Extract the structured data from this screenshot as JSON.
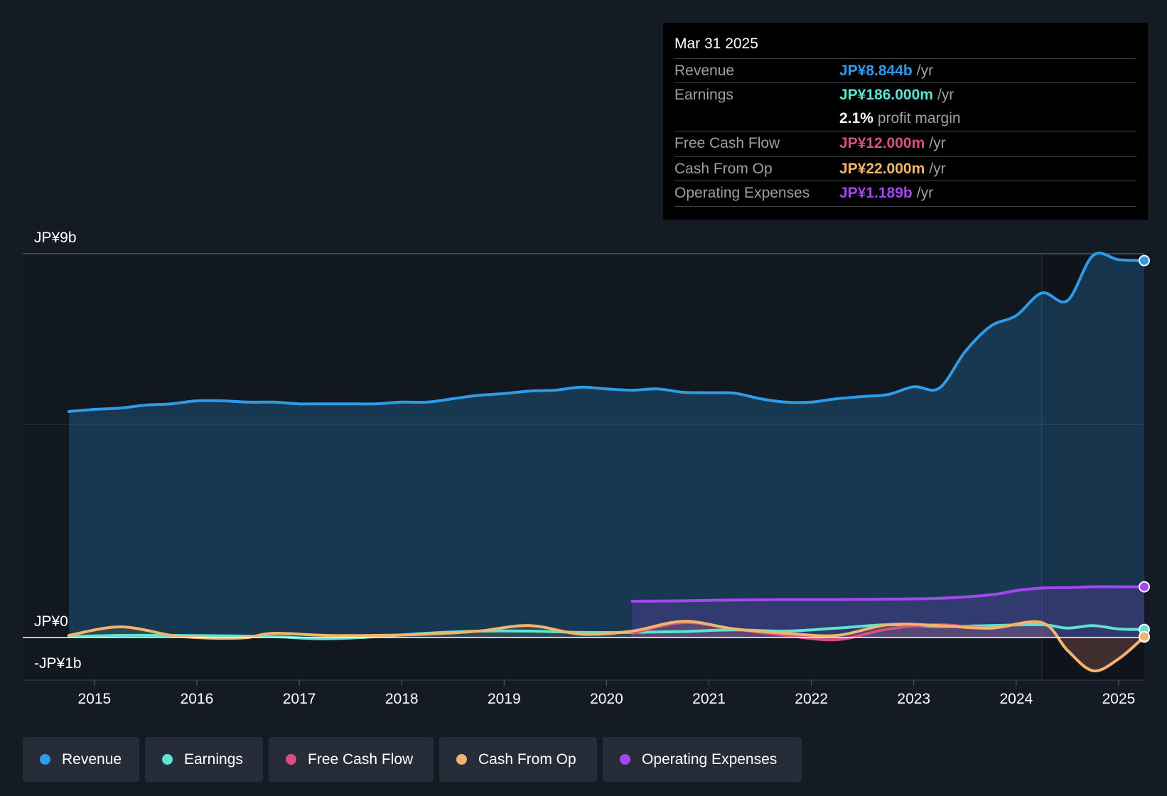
{
  "tooltip": {
    "date": "Mar 31 2025",
    "rows": [
      {
        "label": "Revenue",
        "value": "JP¥8.844b",
        "unit": "/yr",
        "color": "#2d9be8"
      },
      {
        "label": "Earnings",
        "value": "JP¥186.000m",
        "unit": "/yr",
        "color": "#5de3d0"
      },
      {
        "label": "",
        "value": "2.1%",
        "unit": "profit margin",
        "color": "#ffffff"
      },
      {
        "label": "Free Cash Flow",
        "value": "JP¥12.000m",
        "unit": "/yr",
        "color": "#d64f86"
      },
      {
        "label": "Cash From Op",
        "value": "JP¥22.000m",
        "unit": "/yr",
        "color": "#f0b46a"
      },
      {
        "label": "Operating Expenses",
        "value": "JP¥1.189b",
        "unit": "/yr",
        "color": "#a347f0"
      }
    ]
  },
  "legend": [
    {
      "label": "Revenue",
      "color": "#2d9be8"
    },
    {
      "label": "Earnings",
      "color": "#5de3d0"
    },
    {
      "label": "Free Cash Flow",
      "color": "#d64f86"
    },
    {
      "label": "Cash From Op",
      "color": "#f0b46a"
    },
    {
      "label": "Operating Expenses",
      "color": "#a347f0"
    }
  ],
  "chart_data": {
    "type": "area",
    "unit": "JP¥ billions",
    "y_tick_labels": [
      {
        "value": 9,
        "label": "JP¥9b"
      },
      {
        "value": 0,
        "label": "JP¥0"
      },
      {
        "value": -1,
        "label": "-JP¥1b"
      }
    ],
    "ylim": [
      -1,
      9
    ],
    "xlim": [
      2014.3,
      2025.25
    ],
    "x_ticks": [
      2015,
      2016,
      2017,
      2018,
      2019,
      2020,
      2021,
      2022,
      2023,
      2024,
      2025
    ],
    "highlight_start": 2024.25,
    "series": [
      {
        "name": "Revenue",
        "color": "#2d9be8",
        "fill": true,
        "x": [
          2014.75,
          2015.0,
          2015.25,
          2015.5,
          2015.75,
          2016.0,
          2016.25,
          2016.5,
          2016.75,
          2017.0,
          2017.25,
          2017.5,
          2017.75,
          2018.0,
          2018.25,
          2018.5,
          2018.75,
          2019.0,
          2019.25,
          2019.5,
          2019.75,
          2020.0,
          2020.25,
          2020.5,
          2020.75,
          2021.0,
          2021.25,
          2021.5,
          2021.75,
          2022.0,
          2022.25,
          2022.5,
          2022.75,
          2023.0,
          2023.25,
          2023.5,
          2023.75,
          2024.0,
          2024.25,
          2024.5,
          2024.75,
          2025.0,
          2025.25
        ],
        "y": [
          5.3,
          5.35,
          5.38,
          5.45,
          5.48,
          5.55,
          5.55,
          5.52,
          5.52,
          5.48,
          5.48,
          5.48,
          5.48,
          5.52,
          5.52,
          5.6,
          5.68,
          5.72,
          5.78,
          5.8,
          5.87,
          5.83,
          5.8,
          5.83,
          5.75,
          5.74,
          5.73,
          5.6,
          5.52,
          5.52,
          5.6,
          5.65,
          5.7,
          5.88,
          5.85,
          6.7,
          7.3,
          7.55,
          8.08,
          7.9,
          8.96,
          8.86,
          8.84
        ]
      },
      {
        "name": "Earnings",
        "color": "#5de3d0",
        "fill": false,
        "x": [
          2014.75,
          2015.25,
          2015.75,
          2016.25,
          2016.75,
          2017.25,
          2017.75,
          2018.25,
          2018.75,
          2019.25,
          2019.75,
          2020.25,
          2020.75,
          2021.25,
          2021.75,
          2022.25,
          2022.75,
          2023.25,
          2023.75,
          2024.25,
          2024.5,
          2024.75,
          2025.0,
          2025.25
        ],
        "y": [
          0.02,
          0.05,
          0.05,
          0.04,
          0.02,
          -0.03,
          0.02,
          0.1,
          0.15,
          0.15,
          0.12,
          0.12,
          0.14,
          0.18,
          0.15,
          0.22,
          0.3,
          0.26,
          0.28,
          0.3,
          0.22,
          0.28,
          0.2,
          0.19
        ]
      },
      {
        "name": "Free Cash Flow",
        "color": "#d64f86",
        "fill": false,
        "x": [
          2020.25,
          2020.75,
          2021.25,
          2021.75,
          2022.25,
          2022.75,
          2023.25,
          2023.75,
          2024.25,
          2024.5,
          2024.75,
          2025.0,
          2025.25
        ],
        "y": [
          0.1,
          0.35,
          0.2,
          0.05,
          -0.05,
          0.2,
          0.3,
          0.22,
          0.35,
          -0.3,
          -0.78,
          -0.5,
          0.01
        ]
      },
      {
        "name": "Cash From Op",
        "color": "#f0b46a",
        "fill": false,
        "x": [
          2014.75,
          2015.25,
          2015.75,
          2016.0,
          2016.25,
          2016.5,
          2016.75,
          2017.25,
          2017.75,
          2018.25,
          2018.75,
          2019.25,
          2019.75,
          2020.25,
          2020.75,
          2021.25,
          2021.75,
          2022.25,
          2022.75,
          2023.25,
          2023.75,
          2024.25,
          2024.5,
          2024.75,
          2025.0,
          2025.25
        ],
        "y": [
          0.05,
          0.25,
          0.05,
          0.0,
          -0.02,
          0.0,
          0.1,
          0.05,
          0.05,
          0.08,
          0.15,
          0.28,
          0.08,
          0.15,
          0.38,
          0.2,
          0.1,
          0.05,
          0.3,
          0.28,
          0.22,
          0.35,
          -0.3,
          -0.78,
          -0.5,
          0.02
        ]
      },
      {
        "name": "Operating Expenses",
        "color": "#a347f0",
        "fill": true,
        "x": [
          2020.25,
          2020.75,
          2021.25,
          2021.75,
          2022.25,
          2022.75,
          2023.25,
          2023.75,
          2024.0,
          2024.25,
          2024.5,
          2024.75,
          2025.0,
          2025.25
        ],
        "y": [
          0.85,
          0.86,
          0.88,
          0.89,
          0.89,
          0.9,
          0.92,
          1.0,
          1.1,
          1.16,
          1.17,
          1.19,
          1.19,
          1.19
        ]
      }
    ]
  }
}
